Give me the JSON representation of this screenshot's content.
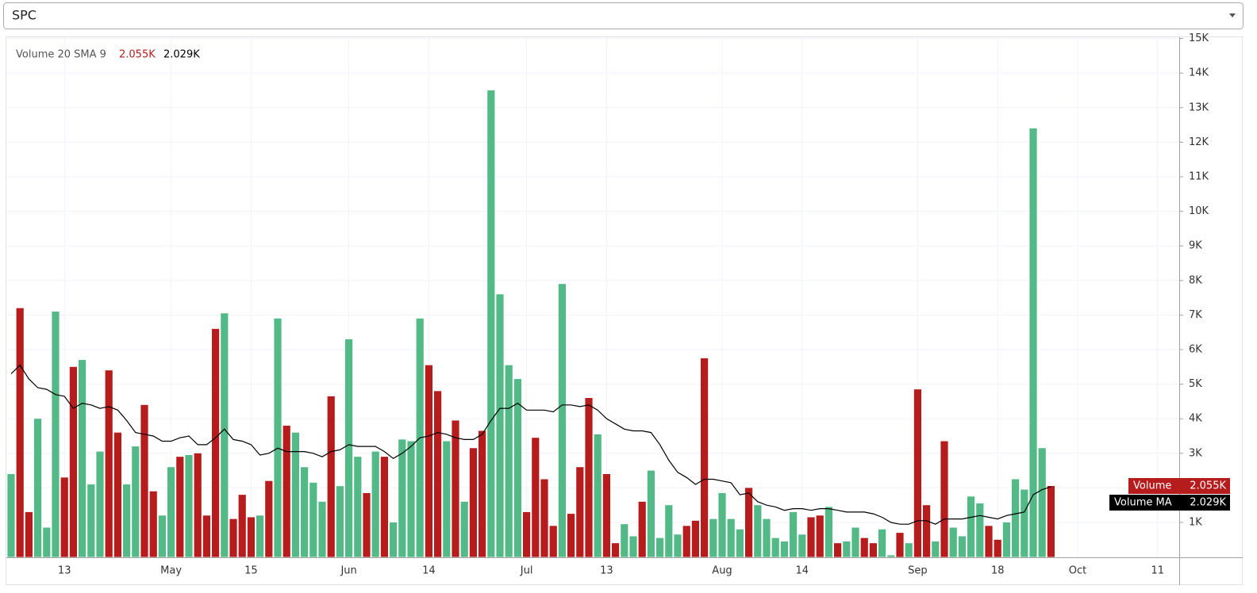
{
  "selector": {
    "value": "SPC"
  },
  "chart_data": {
    "type": "bar",
    "title": "Volume 20 SMA 9",
    "categories": [
      null,
      null,
      null,
      null,
      null,
      null,
      "13",
      null,
      null,
      null,
      null,
      null,
      null,
      null,
      null,
      null,
      null,
      null,
      "May",
      null,
      null,
      null,
      null,
      null,
      null,
      null,
      null,
      "15",
      null,
      null,
      null,
      null,
      null,
      null,
      null,
      null,
      null,
      null,
      "Jun",
      null,
      null,
      null,
      null,
      null,
      null,
      null,
      null,
      "14",
      null,
      null,
      null,
      null,
      null,
      null,
      null,
      null,
      null,
      null,
      "Jul",
      null,
      null,
      null,
      null,
      null,
      null,
      null,
      null,
      "13",
      null,
      null,
      null,
      null,
      null,
      null,
      null,
      null,
      null,
      null,
      null,
      null,
      "Aug",
      null,
      null,
      null,
      null,
      null,
      null,
      null,
      null,
      "14",
      null,
      null,
      null,
      null,
      null,
      null,
      null,
      null,
      null,
      null,
      null,
      null,
      "Sep",
      null,
      null,
      null,
      null,
      null,
      null,
      null,
      null,
      "18",
      null,
      null,
      null,
      null,
      null,
      null,
      null,
      null,
      "Oct",
      null,
      null,
      null,
      null,
      null,
      null,
      null,
      null,
      "11",
      null,
      null
    ],
    "series": [
      {
        "name": "Volume",
        "type": "bar",
        "last_value_label": "2.055K",
        "label_color": "#b71c1c",
        "values": [
          2400,
          7200,
          1300,
          4000,
          850,
          7100,
          2300,
          5500,
          5700,
          2100,
          3050,
          5400,
          3600,
          2100,
          3200,
          4400,
          1900,
          1200,
          2600,
          2900,
          2950,
          3000,
          1200,
          6600,
          7050,
          1100,
          1800,
          1150,
          1200,
          2200,
          6900,
          3800,
          3600,
          2600,
          2150,
          1600,
          4650,
          2050,
          6300,
          2900,
          1850,
          3050,
          2900,
          1000,
          3400,
          3350,
          6900,
          5550,
          4800,
          3350,
          3950,
          1600,
          3150,
          3650,
          13500,
          7600,
          5550,
          5150,
          1300,
          3450,
          2250,
          900,
          7900,
          1250,
          2600,
          4600,
          3550,
          2400,
          400,
          950,
          600,
          1600,
          2500,
          550,
          1500,
          650,
          900,
          1050,
          5750,
          1100,
          1850,
          1100,
          800,
          2000,
          1500,
          1100,
          550,
          450,
          1300,
          650,
          1150,
          1200,
          1450,
          400,
          450,
          850,
          550,
          400,
          800,
          50,
          700,
          400,
          4850,
          1500,
          450,
          3350,
          850,
          600,
          1750,
          1550,
          900,
          500,
          1000,
          2250,
          1950,
          12400,
          3150,
          2055,
          null,
          null,
          null,
          null,
          null,
          null,
          null,
          null,
          null,
          null,
          null,
          null,
          null,
          null
        ],
        "colors": [
          "#53b987",
          "#b71c1c",
          "#b71c1c",
          "#53b987",
          "#53b987",
          "#53b987",
          "#b71c1c",
          "#b71c1c",
          "#53b987",
          "#53b987",
          "#53b987",
          "#b71c1c",
          "#b71c1c",
          "#53b987",
          "#53b987",
          "#b71c1c",
          "#b71c1c",
          "#53b987",
          "#53b987",
          "#b71c1c",
          "#53b987",
          "#b71c1c",
          "#b71c1c",
          "#b71c1c",
          "#53b987",
          "#b71c1c",
          "#b71c1c",
          "#b71c1c",
          "#53b987",
          "#b71c1c",
          "#53b987",
          "#b71c1c",
          "#53b987",
          "#53b987",
          "#53b987",
          "#53b987",
          "#b71c1c",
          "#53b987",
          "#53b987",
          "#53b987",
          "#b71c1c",
          "#53b987",
          "#b71c1c",
          "#53b987",
          "#53b987",
          "#53b987",
          "#53b987",
          "#b71c1c",
          "#b71c1c",
          "#53b987",
          "#b71c1c",
          "#53b987",
          "#b71c1c",
          "#b71c1c",
          "#53b987",
          "#53b987",
          "#53b987",
          "#53b987",
          "#b71c1c",
          "#b71c1c",
          "#b71c1c",
          "#b71c1c",
          "#53b987",
          "#b71c1c",
          "#b71c1c",
          "#b71c1c",
          "#53b987",
          "#b71c1c",
          "#b71c1c",
          "#53b987",
          "#53b987",
          "#b71c1c",
          "#53b987",
          "#53b987",
          "#53b987",
          "#53b987",
          "#b71c1c",
          "#b71c1c",
          "#b71c1c",
          "#53b987",
          "#53b987",
          "#53b987",
          "#53b987",
          "#b71c1c",
          "#53b987",
          "#53b987",
          "#53b987",
          "#53b987",
          "#53b987",
          "#53b987",
          "#b71c1c",
          "#b71c1c",
          "#53b987",
          "#b71c1c",
          "#53b987",
          "#53b987",
          "#b71c1c",
          "#b71c1c",
          "#53b987",
          "#53b987",
          "#b71c1c",
          "#53b987",
          "#b71c1c",
          "#b71c1c",
          "#53b987",
          "#b71c1c",
          "#53b987",
          "#53b987",
          "#53b987",
          "#53b987",
          "#b71c1c",
          "#b71c1c",
          "#53b987",
          "#53b987",
          "#53b987",
          "#53b987",
          "#53b987",
          "#b71c1c",
          null,
          null,
          null,
          null,
          null,
          null,
          null,
          null,
          null,
          null,
          null,
          null,
          null,
          null
        ]
      },
      {
        "name": "Volume MA",
        "type": "line",
        "color": "#000000",
        "last_value_label": "2.029K",
        "label_color": "#000000",
        "values": [
          5300,
          5550,
          5150,
          4900,
          4850,
          4700,
          4650,
          4300,
          4450,
          4400,
          4300,
          4350,
          4250,
          3950,
          3600,
          3550,
          3500,
          3350,
          3350,
          3450,
          3500,
          3250,
          3250,
          3450,
          3700,
          3400,
          3350,
          3250,
          2950,
          3000,
          3150,
          3050,
          3050,
          3050,
          3000,
          2900,
          3050,
          3100,
          3250,
          3200,
          3200,
          3200,
          3050,
          2850,
          3000,
          3200,
          3450,
          3500,
          3600,
          3550,
          3450,
          3400,
          3400,
          3550,
          3950,
          4300,
          4300,
          4450,
          4250,
          4250,
          4250,
          4200,
          4400,
          4400,
          4350,
          4400,
          4250,
          4000,
          3850,
          3700,
          3650,
          3650,
          3600,
          3250,
          2800,
          2450,
          2300,
          2100,
          2250,
          2250,
          2200,
          2150,
          1800,
          1850,
          1600,
          1500,
          1450,
          1350,
          1400,
          1400,
          1350,
          1400,
          1400,
          1350,
          1300,
          1300,
          1300,
          1250,
          1150,
          1000,
          950,
          950,
          1050,
          1050,
          950,
          1100,
          1100,
          1100,
          1150,
          1200,
          1150,
          1100,
          1200,
          1250,
          1300,
          1800,
          1950,
          2029,
          null,
          null,
          null,
          null,
          null,
          null,
          null,
          null,
          null,
          null,
          null,
          null,
          null,
          null
        ]
      }
    ],
    "ylim": [
      0,
      15000
    ],
    "yticks": [
      {
        "value": 1000,
        "label": "1K"
      },
      {
        "value": 2000,
        "label": "2K"
      },
      {
        "value": 3000,
        "label": "3K"
      },
      {
        "value": 4000,
        "label": "4K"
      },
      {
        "value": 5000,
        "label": "5K"
      },
      {
        "value": 6000,
        "label": "6K"
      },
      {
        "value": 7000,
        "label": "7K"
      },
      {
        "value": 8000,
        "label": "8K"
      },
      {
        "value": 9000,
        "label": "9K"
      },
      {
        "value": 10000,
        "label": "10K"
      },
      {
        "value": 11000,
        "label": "11K"
      },
      {
        "value": 12000,
        "label": "12K"
      },
      {
        "value": 13000,
        "label": "13K"
      },
      {
        "value": 14000,
        "label": "14K"
      },
      {
        "value": 15000,
        "label": "15K"
      }
    ],
    "grid": true
  }
}
